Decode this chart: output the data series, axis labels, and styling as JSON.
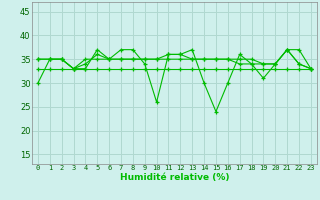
{
  "xlabel": "Humidité relative (%)",
  "background_color": "#cff0ec",
  "grid_color": "#b0d8d0",
  "line_color": "#00bb00",
  "ylim": [
    13,
    47
  ],
  "xlim": [
    -0.5,
    23.5
  ],
  "yticks": [
    15,
    20,
    25,
    30,
    35,
    40,
    45
  ],
  "xticks": [
    0,
    1,
    2,
    3,
    4,
    5,
    6,
    7,
    8,
    9,
    10,
    11,
    12,
    13,
    14,
    15,
    16,
    17,
    18,
    19,
    20,
    21,
    22,
    23
  ],
  "series": [
    [
      30,
      35,
      35,
      33,
      33,
      37,
      35,
      37,
      37,
      34,
      26,
      36,
      36,
      37,
      30,
      24,
      30,
      36,
      34,
      31,
      34,
      37,
      37,
      33
    ],
    [
      35,
      35,
      35,
      33,
      34,
      36,
      35,
      35,
      35,
      35,
      35,
      36,
      36,
      35,
      35,
      35,
      35,
      34,
      34,
      34,
      34,
      37,
      34,
      33
    ],
    [
      35,
      35,
      35,
      33,
      35,
      35,
      35,
      35,
      35,
      35,
      35,
      35,
      35,
      35,
      35,
      35,
      35,
      35,
      35,
      34,
      34,
      37,
      34,
      33
    ],
    [
      33,
      33,
      33,
      33,
      33,
      33,
      33,
      33,
      33,
      33,
      33,
      33,
      33,
      33,
      33,
      33,
      33,
      33,
      33,
      33,
      33,
      33,
      33,
      33
    ]
  ]
}
